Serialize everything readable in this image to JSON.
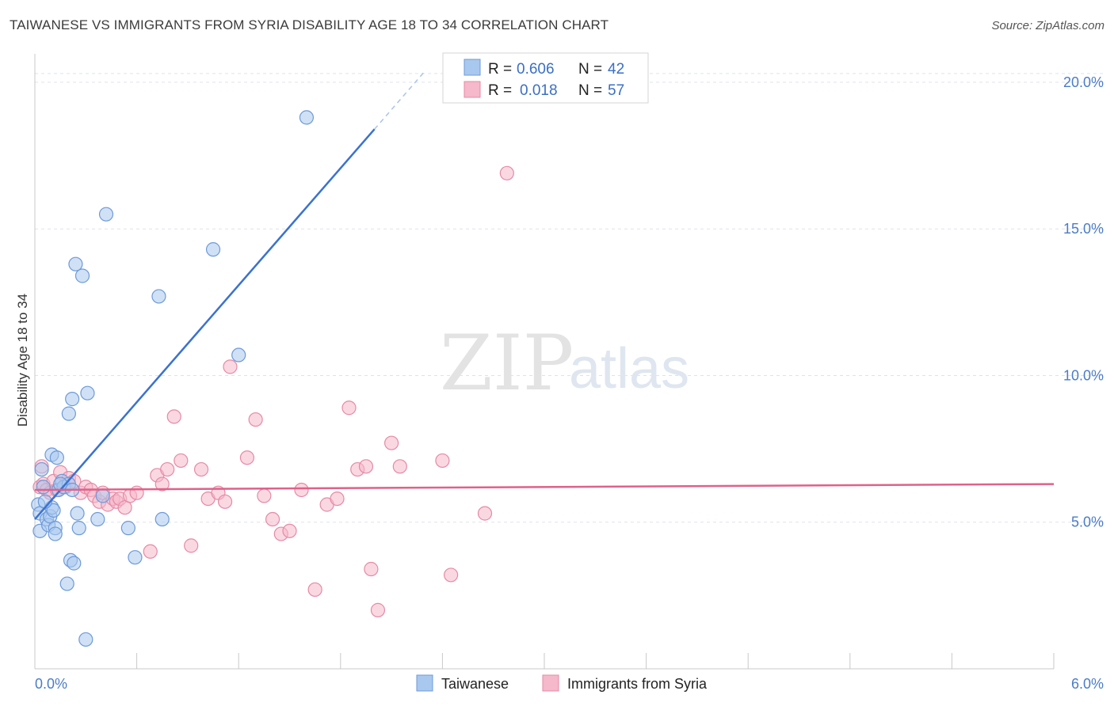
{
  "title": "TAIWANESE VS IMMIGRANTS FROM SYRIA DISABILITY AGE 18 TO 34 CORRELATION CHART",
  "source": "Source: ZipAtlas.com",
  "watermark": {
    "zip": "ZIP",
    "atlas": "atlas"
  },
  "legend": {
    "taiwanese": {
      "r_label": "R =",
      "r_value": "0.606",
      "n_label": "N =",
      "n_value": "42"
    },
    "syria": {
      "r_label": "R =",
      "r_value": "0.018",
      "n_label": "N =",
      "n_value": "57"
    }
  },
  "bottom_legend": {
    "taiwanese": "Taiwanese",
    "syria": "Immigrants from Syria"
  },
  "colors": {
    "taiwanese_fill": "#a9c8ef",
    "taiwanese_stroke": "#6d9ad9",
    "taiwanese_line": "#3a72d0",
    "syria_fill": "#f6b8cb",
    "syria_stroke": "#e58aa6",
    "syria_line": "#e0618a",
    "grid": "#dde3ea",
    "axis_text": "#4a7cc9"
  },
  "chart_data": {
    "type": "scatter",
    "title": "TAIWANESE VS IMMIGRANTS FROM SYRIA DISABILITY AGE 18 TO 34 CORRELATION CHART",
    "xlabel": "",
    "ylabel": "Disability Age 18 to 34",
    "xlim": [
      0,
      6
    ],
    "ylim": [
      0,
      20.7
    ],
    "y_ticks": [
      {
        "value": 5,
        "label": "5.0%"
      },
      {
        "value": 10,
        "label": "10.0%"
      },
      {
        "value": 15,
        "label": "15.0%"
      },
      {
        "value": 20,
        "label": "20.0%"
      }
    ],
    "x_tick_labels": [
      {
        "value": 0,
        "label": "0.0%"
      },
      {
        "value": 6,
        "label": "6.0%"
      }
    ],
    "x_minor_ticks": [
      0,
      0.6,
      1.2,
      1.8,
      2.4,
      3.0,
      3.6,
      4.2,
      4.8,
      5.4,
      6.0
    ],
    "series": [
      {
        "name": "Taiwanese",
        "r": 0.606,
        "n": 42,
        "trend": {
          "x0": 0.0,
          "y0": 5.1,
          "x1": 2.0,
          "y1": 18.4,
          "dash_x1": 2.3,
          "dash_y1": 20.4
        },
        "points": [
          [
            0.02,
            5.6
          ],
          [
            0.03,
            4.7
          ],
          [
            0.03,
            5.3
          ],
          [
            0.04,
            6.8
          ],
          [
            0.05,
            6.2
          ],
          [
            0.07,
            5.1
          ],
          [
            0.08,
            4.9
          ],
          [
            0.09,
            5.2
          ],
          [
            0.1,
            5.5
          ],
          [
            0.1,
            7.3
          ],
          [
            0.11,
            5.4
          ],
          [
            0.12,
            4.8
          ],
          [
            0.12,
            4.6
          ],
          [
            0.13,
            7.2
          ],
          [
            0.14,
            6.1
          ],
          [
            0.16,
            6.4
          ],
          [
            0.17,
            6.2
          ],
          [
            0.2,
            6.3
          ],
          [
            0.2,
            8.7
          ],
          [
            0.21,
            3.7
          ],
          [
            0.19,
            2.9
          ],
          [
            0.22,
            9.2
          ],
          [
            0.22,
            6.1
          ],
          [
            0.23,
            3.6
          ],
          [
            0.24,
            13.8
          ],
          [
            0.25,
            5.3
          ],
          [
            0.26,
            4.8
          ],
          [
            0.28,
            13.4
          ],
          [
            0.3,
            1.0
          ],
          [
            0.31,
            9.4
          ],
          [
            0.37,
            5.1
          ],
          [
            0.4,
            5.9
          ],
          [
            0.42,
            15.5
          ],
          [
            0.55,
            4.8
          ],
          [
            0.59,
            3.8
          ],
          [
            0.73,
            12.7
          ],
          [
            0.75,
            5.1
          ],
          [
            1.05,
            14.3
          ],
          [
            1.2,
            10.7
          ],
          [
            1.6,
            18.8
          ],
          [
            0.06,
            5.7
          ],
          [
            0.15,
            6.3
          ]
        ]
      },
      {
        "name": "Immigrants from Syria",
        "r": 0.018,
        "n": 57,
        "trend": {
          "x0": 0.0,
          "y0": 6.1,
          "x1": 6.0,
          "y1": 6.3
        },
        "points": [
          [
            0.03,
            6.2
          ],
          [
            0.04,
            6.9
          ],
          [
            0.05,
            6.3
          ],
          [
            0.07,
            6.1
          ],
          [
            0.09,
            6.0
          ],
          [
            0.11,
            6.4
          ],
          [
            0.13,
            6.1
          ],
          [
            0.15,
            6.7
          ],
          [
            0.18,
            6.2
          ],
          [
            0.2,
            6.5
          ],
          [
            0.23,
            6.4
          ],
          [
            0.27,
            6.0
          ],
          [
            0.3,
            6.2
          ],
          [
            0.33,
            6.1
          ],
          [
            0.35,
            5.9
          ],
          [
            0.38,
            5.7
          ],
          [
            0.4,
            6.0
          ],
          [
            0.43,
            5.6
          ],
          [
            0.46,
            5.8
          ],
          [
            0.48,
            5.7
          ],
          [
            0.5,
            5.8
          ],
          [
            0.53,
            5.5
          ],
          [
            0.56,
            5.9
          ],
          [
            0.6,
            6.0
          ],
          [
            0.68,
            4.0
          ],
          [
            0.72,
            6.6
          ],
          [
            0.75,
            6.3
          ],
          [
            0.78,
            6.8
          ],
          [
            0.82,
            8.6
          ],
          [
            0.86,
            7.1
          ],
          [
            0.92,
            4.2
          ],
          [
            0.98,
            6.8
          ],
          [
            1.02,
            5.8
          ],
          [
            1.08,
            6.0
          ],
          [
            1.12,
            5.7
          ],
          [
            1.15,
            10.3
          ],
          [
            1.25,
            7.2
          ],
          [
            1.3,
            8.5
          ],
          [
            1.35,
            5.9
          ],
          [
            1.4,
            5.1
          ],
          [
            1.45,
            4.6
          ],
          [
            1.5,
            4.7
          ],
          [
            1.57,
            6.1
          ],
          [
            1.65,
            2.7
          ],
          [
            1.72,
            5.6
          ],
          [
            1.78,
            5.8
          ],
          [
            1.85,
            8.9
          ],
          [
            1.9,
            6.8
          ],
          [
            1.95,
            6.9
          ],
          [
            1.98,
            3.4
          ],
          [
            2.02,
            2.0
          ],
          [
            2.1,
            7.7
          ],
          [
            2.15,
            6.9
          ],
          [
            2.4,
            7.1
          ],
          [
            2.45,
            3.2
          ],
          [
            2.65,
            5.3
          ],
          [
            2.78,
            16.9
          ]
        ]
      }
    ]
  }
}
